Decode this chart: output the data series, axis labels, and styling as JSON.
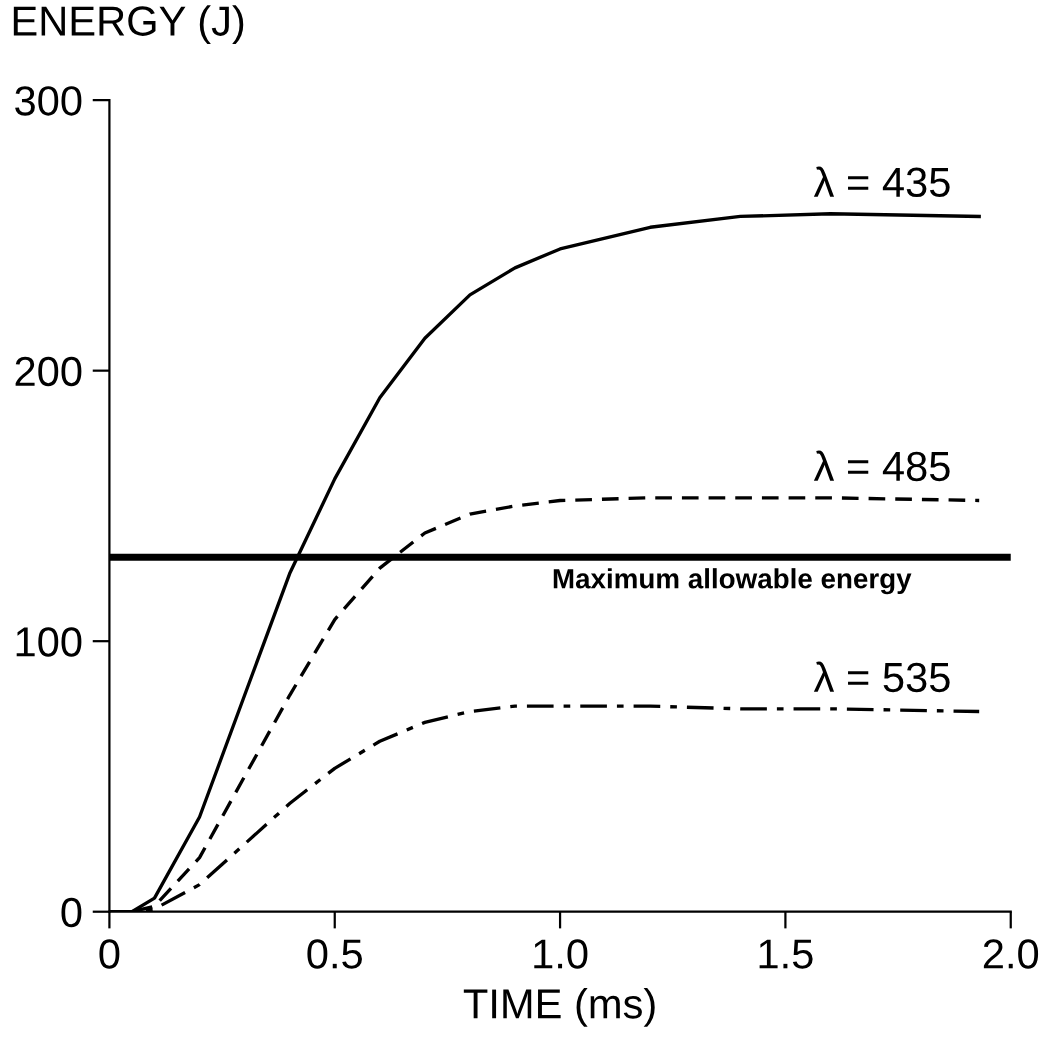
{
  "chart_data": {
    "type": "line",
    "xlabel": "TIME (ms)",
    "ylabel": "ENERGY (J)",
    "xlim": [
      0,
      2.0
    ],
    "ylim": [
      0,
      300
    ],
    "xticks": [
      0,
      0.5,
      {
        "value": 1.0,
        "label": "1.0"
      },
      1.5,
      {
        "value": 2.0,
        "label": "2.0"
      }
    ],
    "yticks": [
      0,
      100,
      200,
      300
    ],
    "grid": false,
    "legend": false,
    "x": [
      0,
      0.05,
      0.1,
      0.2,
      0.3,
      0.4,
      0.5,
      0.6,
      0.7,
      0.8,
      0.9,
      1.0,
      1.2,
      1.4,
      1.6,
      1.93
    ],
    "series": [
      {
        "name": "λ = 435",
        "color": "#000000",
        "line_style": "solid",
        "values": [
          0,
          0,
          5,
          35,
          80,
          125,
          160,
          190,
          212,
          228,
          238,
          245,
          253,
          257,
          258,
          257
        ]
      },
      {
        "name": "λ = 485",
        "color": "#000000",
        "line_style": "dashed",
        "values": [
          0,
          0,
          2,
          20,
          50,
          80,
          108,
          127,
          140,
          147,
          150,
          152,
          153,
          153,
          153,
          152
        ]
      },
      {
        "name": "λ = 535",
        "color": "#000000",
        "line_style": "dashdot",
        "values": [
          0,
          0,
          1,
          10,
          25,
          40,
          53,
          63,
          70,
          74,
          76,
          76,
          76,
          75,
          75,
          74
        ]
      }
    ],
    "ref_lines": [
      {
        "axis": "y",
        "value": 131,
        "label": "Maximum allowable energy",
        "color": "#000000"
      }
    ]
  }
}
